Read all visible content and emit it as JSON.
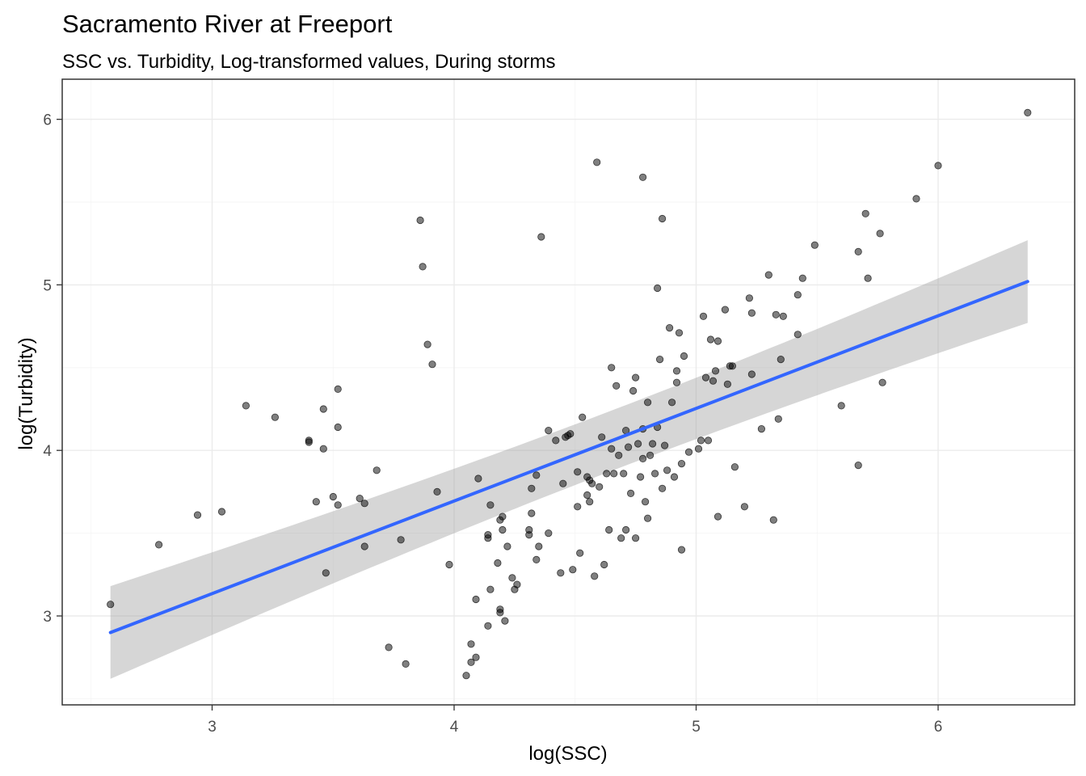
{
  "chart_data": {
    "type": "scatter",
    "title": "Sacramento River at Freeport",
    "subtitle": "SSC vs. Turbidity, Log-transformed values, During storms",
    "xlabel": "log(SSC)",
    "ylabel": "log(Turbidity)",
    "xlim": [
      2.45,
      6.45
    ],
    "ylim": [
      2.45,
      6.2
    ],
    "x_ticks": [
      3,
      4,
      5,
      6
    ],
    "y_ticks": [
      3,
      4,
      5,
      6
    ],
    "x_tick_labels": [
      "3",
      "4",
      "5",
      "6"
    ],
    "y_tick_labels": [
      "3",
      "4",
      "5",
      "6"
    ],
    "grid": true,
    "legend": "none",
    "point_color": "#000000",
    "fit_color": "#3366ff",
    "ribbon_color": "#999999",
    "fit": {
      "method": "linear",
      "x": [
        2.58,
        6.37
      ],
      "y": [
        2.9,
        5.02
      ],
      "ci_lower": [
        2.62,
        4.76
      ],
      "ci_upper": [
        3.18,
        5.27
      ],
      "ci_center": 4.68
    },
    "points": [
      [
        2.58,
        3.07
      ],
      [
        2.78,
        3.43
      ],
      [
        2.94,
        3.61
      ],
      [
        3.04,
        3.63
      ],
      [
        3.14,
        4.27
      ],
      [
        3.26,
        4.2
      ],
      [
        3.4,
        4.06
      ],
      [
        3.4,
        4.05
      ],
      [
        3.43,
        3.69
      ],
      [
        3.46,
        4.25
      ],
      [
        3.46,
        4.01
      ],
      [
        3.47,
        3.26
      ],
      [
        3.5,
        3.72
      ],
      [
        3.52,
        4.37
      ],
      [
        3.52,
        4.14
      ],
      [
        3.52,
        3.67
      ],
      [
        3.61,
        3.71
      ],
      [
        3.63,
        3.68
      ],
      [
        3.63,
        3.42
      ],
      [
        3.68,
        3.88
      ],
      [
        3.73,
        2.81
      ],
      [
        3.78,
        3.46
      ],
      [
        3.8,
        2.71
      ],
      [
        3.86,
        5.39
      ],
      [
        3.87,
        5.11
      ],
      [
        3.89,
        4.64
      ],
      [
        3.91,
        4.52
      ],
      [
        3.93,
        3.75
      ],
      [
        3.98,
        3.31
      ],
      [
        4.05,
        2.64
      ],
      [
        4.07,
        2.83
      ],
      [
        4.07,
        2.72
      ],
      [
        4.09,
        2.75
      ],
      [
        4.09,
        3.1
      ],
      [
        4.1,
        3.83
      ],
      [
        4.14,
        3.49
      ],
      [
        4.14,
        3.47
      ],
      [
        4.14,
        2.94
      ],
      [
        4.15,
        3.67
      ],
      [
        4.15,
        3.16
      ],
      [
        4.18,
        3.32
      ],
      [
        4.19,
        3.04
      ],
      [
        4.19,
        3.02
      ],
      [
        4.19,
        3.58
      ],
      [
        4.2,
        3.52
      ],
      [
        4.2,
        3.6
      ],
      [
        4.21,
        2.97
      ],
      [
        4.22,
        3.42
      ],
      [
        4.24,
        3.23
      ],
      [
        4.25,
        3.16
      ],
      [
        4.26,
        3.19
      ],
      [
        4.31,
        3.49
      ],
      [
        4.31,
        3.52
      ],
      [
        4.32,
        3.62
      ],
      [
        4.32,
        3.77
      ],
      [
        4.34,
        3.85
      ],
      [
        4.34,
        3.34
      ],
      [
        4.35,
        3.42
      ],
      [
        4.36,
        5.29
      ],
      [
        4.39,
        3.5
      ],
      [
        4.39,
        4.12
      ],
      [
        4.42,
        4.06
      ],
      [
        4.44,
        3.26
      ],
      [
        4.45,
        3.8
      ],
      [
        4.46,
        4.08
      ],
      [
        4.47,
        4.09
      ],
      [
        4.48,
        4.1
      ],
      [
        4.49,
        3.28
      ],
      [
        4.51,
        3.87
      ],
      [
        4.51,
        3.66
      ],
      [
        4.52,
        3.38
      ],
      [
        4.53,
        4.2
      ],
      [
        4.55,
        3.84
      ],
      [
        4.55,
        3.73
      ],
      [
        4.56,
        3.82
      ],
      [
        4.56,
        3.69
      ],
      [
        4.57,
        3.8
      ],
      [
        4.58,
        3.24
      ],
      [
        4.59,
        5.74
      ],
      [
        4.6,
        3.78
      ],
      [
        4.61,
        4.08
      ],
      [
        4.62,
        3.31
      ],
      [
        4.63,
        3.86
      ],
      [
        4.64,
        3.52
      ],
      [
        4.65,
        4.01
      ],
      [
        4.65,
        4.5
      ],
      [
        4.66,
        3.86
      ],
      [
        4.67,
        4.39
      ],
      [
        4.68,
        3.97
      ],
      [
        4.69,
        3.47
      ],
      [
        4.7,
        3.86
      ],
      [
        4.71,
        4.12
      ],
      [
        4.71,
        3.52
      ],
      [
        4.72,
        4.02
      ],
      [
        4.73,
        3.74
      ],
      [
        4.74,
        4.36
      ],
      [
        4.75,
        3.47
      ],
      [
        4.75,
        4.44
      ],
      [
        4.76,
        4.04
      ],
      [
        4.77,
        3.84
      ],
      [
        4.78,
        4.13
      ],
      [
        4.78,
        3.95
      ],
      [
        4.78,
        5.65
      ],
      [
        4.79,
        3.69
      ],
      [
        4.8,
        4.29
      ],
      [
        4.8,
        3.59
      ],
      [
        4.81,
        3.97
      ],
      [
        4.82,
        4.04
      ],
      [
        4.83,
        3.86
      ],
      [
        4.84,
        4.98
      ],
      [
        4.84,
        4.14
      ],
      [
        4.85,
        4.55
      ],
      [
        4.86,
        5.4
      ],
      [
        4.86,
        3.77
      ],
      [
        4.87,
        4.03
      ],
      [
        4.88,
        3.88
      ],
      [
        4.89,
        4.74
      ],
      [
        4.9,
        4.29
      ],
      [
        4.91,
        3.84
      ],
      [
        4.92,
        4.41
      ],
      [
        4.92,
        4.48
      ],
      [
        4.93,
        4.71
      ],
      [
        4.94,
        3.4
      ],
      [
        4.94,
        3.92
      ],
      [
        4.95,
        4.57
      ],
      [
        4.97,
        3.99
      ],
      [
        5.01,
        4.01
      ],
      [
        5.02,
        4.06
      ],
      [
        5.03,
        4.81
      ],
      [
        5.04,
        4.44
      ],
      [
        5.05,
        4.06
      ],
      [
        5.06,
        4.67
      ],
      [
        5.07,
        4.42
      ],
      [
        5.08,
        4.48
      ],
      [
        5.09,
        3.6
      ],
      [
        5.09,
        4.66
      ],
      [
        5.12,
        4.85
      ],
      [
        5.13,
        4.4
      ],
      [
        5.14,
        4.51
      ],
      [
        5.15,
        4.51
      ],
      [
        5.16,
        3.9
      ],
      [
        5.2,
        3.66
      ],
      [
        5.22,
        4.92
      ],
      [
        5.23,
        4.83
      ],
      [
        5.23,
        4.46
      ],
      [
        5.27,
        4.13
      ],
      [
        5.3,
        5.06
      ],
      [
        5.32,
        3.58
      ],
      [
        5.33,
        4.82
      ],
      [
        5.34,
        4.19
      ],
      [
        5.35,
        4.55
      ],
      [
        5.36,
        4.81
      ],
      [
        5.42,
        4.94
      ],
      [
        5.42,
        4.7
      ],
      [
        5.44,
        5.04
      ],
      [
        5.49,
        5.24
      ],
      [
        5.6,
        4.27
      ],
      [
        5.67,
        5.2
      ],
      [
        5.67,
        3.91
      ],
      [
        5.7,
        5.43
      ],
      [
        5.71,
        5.04
      ],
      [
        5.76,
        5.31
      ],
      [
        5.77,
        4.41
      ],
      [
        5.91,
        5.52
      ],
      [
        6.0,
        5.72
      ],
      [
        6.37,
        6.04
      ]
    ]
  }
}
